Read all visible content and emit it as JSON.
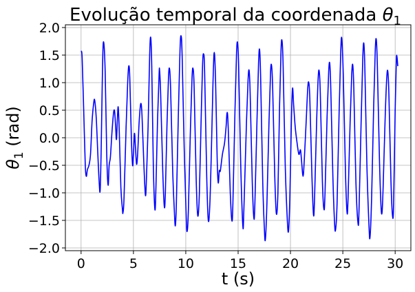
{
  "chart_data": {
    "type": "line",
    "title_text": "Evolução temporal da coordenada ",
    "title_symbol": "θ",
    "title_subscript": "1",
    "xlabel": "t (s)",
    "ylabel_symbol": "θ",
    "ylabel_subscript": "1",
    "ylabel_unit": " (rad)",
    "xlim": [
      -1.5,
      31.5
    ],
    "ylim": [
      -2.05,
      2.05
    ],
    "xticks": [
      0,
      5,
      10,
      15,
      20,
      25,
      30
    ],
    "xtick_labels": [
      "0",
      "5",
      "10",
      "15",
      "20",
      "25",
      "30"
    ],
    "yticks": [
      2.0,
      1.5,
      1.0,
      0.5,
      0.0,
      -0.5,
      -1.0,
      -1.5,
      -2.0
    ],
    "ytick_labels": [
      "2.0",
      "1.5",
      "1.0",
      "0.5",
      "0.0",
      "−0.5",
      "−1.0",
      "−1.5",
      "−2.0"
    ],
    "grid": true,
    "series": [
      {
        "color": "#0000ff",
        "points": [
          [
            0.0,
            1.57
          ],
          [
            0.1,
            1.45
          ],
          [
            0.25,
            0.5
          ],
          [
            0.4,
            -0.5
          ],
          [
            0.5,
            -0.7
          ],
          [
            0.6,
            -0.58
          ],
          [
            0.75,
            -0.5
          ],
          [
            0.9,
            -0.3
          ],
          [
            1.05,
            0.3
          ],
          [
            1.2,
            0.62
          ],
          [
            1.3,
            0.68
          ],
          [
            1.45,
            0.35
          ],
          [
            1.6,
            -0.3
          ],
          [
            1.72,
            -0.78
          ],
          [
            1.82,
            -0.96
          ],
          [
            1.92,
            -0.2
          ],
          [
            2.05,
            1.3
          ],
          [
            2.15,
            1.74
          ],
          [
            2.3,
            1.2
          ],
          [
            2.45,
            -0.3
          ],
          [
            2.58,
            -0.86
          ],
          [
            2.68,
            -0.5
          ],
          [
            2.8,
            -0.35
          ],
          [
            2.95,
            0.1
          ],
          [
            3.1,
            0.45
          ],
          [
            3.2,
            0.48
          ],
          [
            3.3,
            0.2
          ],
          [
            3.38,
            -0.03
          ],
          [
            3.48,
            0.4
          ],
          [
            3.55,
            0.55
          ],
          [
            3.65,
            0.1
          ],
          [
            3.8,
            -0.9
          ],
          [
            3.95,
            -1.3
          ],
          [
            4.0,
            -1.36
          ],
          [
            4.1,
            -1.1
          ],
          [
            4.3,
            0.2
          ],
          [
            4.45,
            1.0
          ],
          [
            4.55,
            1.3
          ],
          [
            4.65,
            1.1
          ],
          [
            4.8,
            0.0
          ],
          [
            4.92,
            -0.5
          ],
          [
            5.0,
            -0.3
          ],
          [
            5.1,
            0.08
          ],
          [
            5.2,
            -0.2
          ],
          [
            5.3,
            -0.48
          ],
          [
            5.4,
            -0.3
          ],
          [
            5.55,
            0.3
          ],
          [
            5.7,
            0.62
          ],
          [
            5.82,
            0.4
          ],
          [
            6.0,
            -0.5
          ],
          [
            6.15,
            -1.05
          ],
          [
            6.25,
            -0.7
          ],
          [
            6.4,
            0.2
          ],
          [
            6.55,
            1.5
          ],
          [
            6.65,
            1.82
          ],
          [
            6.75,
            1.3
          ],
          [
            6.9,
            -0.5
          ],
          [
            7.05,
            -1.3
          ],
          [
            7.15,
            -0.9
          ],
          [
            7.3,
            0.3
          ],
          [
            7.45,
            1.15
          ],
          [
            7.5,
            1.22
          ],
          [
            7.6,
            0.8
          ],
          [
            7.8,
            -0.6
          ],
          [
            7.95,
            -1.25
          ],
          [
            8.05,
            -1.0
          ],
          [
            8.2,
            0.2
          ],
          [
            8.35,
            1.1
          ],
          [
            8.45,
            1.25
          ],
          [
            8.55,
            0.9
          ],
          [
            8.75,
            -0.6
          ],
          [
            8.9,
            -1.3
          ],
          [
            9.0,
            -1.6
          ],
          [
            9.1,
            -1.2
          ],
          [
            9.3,
            0.5
          ],
          [
            9.45,
            1.6
          ],
          [
            9.55,
            1.85
          ],
          [
            9.65,
            1.5
          ],
          [
            9.85,
            -0.2
          ],
          [
            10.05,
            -1.5
          ],
          [
            10.15,
            -1.68
          ],
          [
            10.25,
            -1.3
          ],
          [
            10.45,
            0.2
          ],
          [
            10.6,
            1.1
          ],
          [
            10.7,
            1.25
          ],
          [
            10.8,
            0.9
          ],
          [
            11.0,
            -0.8
          ],
          [
            11.15,
            -1.42
          ],
          [
            11.3,
            -1.0
          ],
          [
            11.45,
            0.2
          ],
          [
            11.6,
            1.3
          ],
          [
            11.7,
            1.52
          ],
          [
            11.8,
            1.2
          ],
          [
            12.0,
            -0.7
          ],
          [
            12.15,
            -1.5
          ],
          [
            12.3,
            -1.2
          ],
          [
            12.45,
            -0.2
          ],
          [
            12.6,
            1.0
          ],
          [
            12.72,
            1.55
          ],
          [
            12.85,
            1.0
          ],
          [
            13.0,
            -0.4
          ],
          [
            13.1,
            -0.82
          ],
          [
            13.2,
            -0.6
          ],
          [
            13.3,
            -0.6
          ],
          [
            13.5,
            -0.3
          ],
          [
            13.7,
            -0.1
          ],
          [
            13.85,
            0.2
          ],
          [
            13.95,
            0.46
          ],
          [
            14.05,
            0.2
          ],
          [
            14.25,
            -1.0
          ],
          [
            14.4,
            -1.5
          ],
          [
            14.5,
            -1.2
          ],
          [
            14.7,
            0.5
          ],
          [
            14.85,
            1.55
          ],
          [
            14.95,
            1.72
          ],
          [
            15.05,
            1.3
          ],
          [
            15.25,
            -0.5
          ],
          [
            15.45,
            -1.6
          ],
          [
            15.55,
            -1.3
          ],
          [
            15.8,
            0.3
          ],
          [
            15.95,
            1.05
          ],
          [
            16.05,
            1.22
          ],
          [
            16.15,
            0.8
          ],
          [
            16.35,
            -0.8
          ],
          [
            16.5,
            -1.45
          ],
          [
            16.6,
            -1.2
          ],
          [
            16.8,
            0.3
          ],
          [
            16.95,
            1.35
          ],
          [
            17.05,
            1.6
          ],
          [
            17.15,
            1.1
          ],
          [
            17.35,
            -0.8
          ],
          [
            17.5,
            -1.62
          ],
          [
            17.6,
            -1.85
          ],
          [
            17.75,
            -1.2
          ],
          [
            17.95,
            0.3
          ],
          [
            18.1,
            1.2
          ],
          [
            18.2,
            1.3
          ],
          [
            18.3,
            0.9
          ],
          [
            18.5,
            -0.7
          ],
          [
            18.65,
            -1.38
          ],
          [
            18.8,
            -1.0
          ],
          [
            18.95,
            0.5
          ],
          [
            19.1,
            1.6
          ],
          [
            19.2,
            1.75
          ],
          [
            19.3,
            1.3
          ],
          [
            19.5,
            -0.5
          ],
          [
            19.7,
            -1.5
          ],
          [
            19.82,
            -1.68
          ],
          [
            19.95,
            -1.0
          ],
          [
            20.1,
            0.4
          ],
          [
            20.2,
            0.9
          ],
          [
            20.3,
            0.6
          ],
          [
            20.45,
            0.2
          ],
          [
            20.6,
            -0.05
          ],
          [
            20.8,
            -0.3
          ],
          [
            20.95,
            -0.22
          ],
          [
            21.05,
            -0.4
          ],
          [
            21.2,
            -0.7
          ],
          [
            21.32,
            -0.4
          ],
          [
            21.5,
            0.3
          ],
          [
            21.65,
            0.9
          ],
          [
            21.75,
            1.0
          ],
          [
            21.85,
            0.7
          ],
          [
            22.05,
            -0.7
          ],
          [
            22.2,
            -1.4
          ],
          [
            22.3,
            -1.1
          ],
          [
            22.5,
            0.3
          ],
          [
            22.65,
            1.1
          ],
          [
            22.75,
            1.2
          ],
          [
            22.85,
            0.8
          ],
          [
            23.05,
            -0.8
          ],
          [
            23.2,
            -1.3
          ],
          [
            23.3,
            -1.0
          ],
          [
            23.5,
            0.4
          ],
          [
            23.65,
            1.2
          ],
          [
            23.75,
            1.35
          ],
          [
            23.85,
            0.9
          ],
          [
            24.05,
            -0.7
          ],
          [
            24.2,
            -1.5
          ],
          [
            24.3,
            -1.68
          ],
          [
            24.45,
            -1.2
          ],
          [
            24.65,
            0.5
          ],
          [
            24.8,
            1.55
          ],
          [
            24.9,
            1.8
          ],
          [
            25.05,
            1.1
          ],
          [
            25.25,
            -0.6
          ],
          [
            25.4,
            -1.35
          ],
          [
            25.5,
            -1.1
          ],
          [
            25.7,
            0.3
          ],
          [
            25.85,
            1.15
          ],
          [
            25.95,
            1.32
          ],
          [
            26.05,
            0.9
          ],
          [
            26.25,
            -0.8
          ],
          [
            26.45,
            -1.55
          ],
          [
            26.55,
            -1.3
          ],
          [
            26.75,
            0.3
          ],
          [
            26.9,
            1.4
          ],
          [
            27.0,
            1.72
          ],
          [
            27.1,
            1.3
          ],
          [
            27.3,
            -0.5
          ],
          [
            27.5,
            -1.6
          ],
          [
            27.6,
            -1.8
          ],
          [
            27.75,
            -1.1
          ],
          [
            27.95,
            0.6
          ],
          [
            28.1,
            1.6
          ],
          [
            28.2,
            1.78
          ],
          [
            28.3,
            1.3
          ],
          [
            28.5,
            -0.4
          ],
          [
            28.65,
            -1.25
          ],
          [
            28.75,
            -1.35
          ],
          [
            28.85,
            -0.9
          ],
          [
            29.05,
            0.4
          ],
          [
            29.2,
            1.1
          ],
          [
            29.3,
            1.2
          ],
          [
            29.4,
            0.8
          ],
          [
            29.6,
            -0.8
          ],
          [
            29.75,
            -1.42
          ],
          [
            29.85,
            -1.2
          ],
          [
            30.0,
            0.5
          ],
          [
            30.1,
            1.3
          ],
          [
            30.15,
            1.5
          ],
          [
            30.25,
            1.3
          ]
        ]
      }
    ]
  }
}
